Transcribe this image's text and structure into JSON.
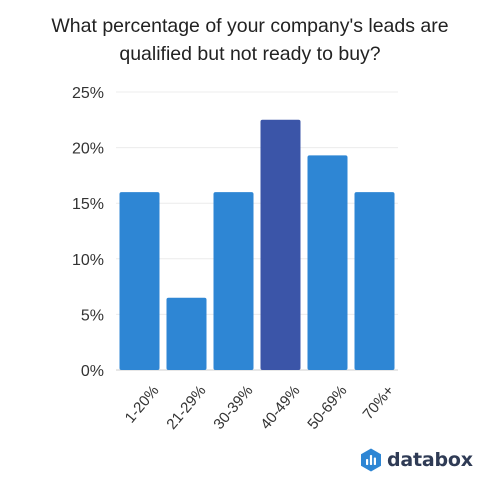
{
  "chart_data": {
    "type": "bar",
    "title": "What percentage of your company's leads are qualified but not ready to buy?",
    "title_lines": [
      "What percentage of your company's leads are",
      "qualified but not ready to buy?"
    ],
    "categories": [
      "1-20%",
      "21-29%",
      "30-39%",
      "40-49%",
      "50-69%",
      "70%+"
    ],
    "values": [
      16,
      6.5,
      16,
      22.5,
      19.3,
      16
    ],
    "ylim": [
      0,
      25
    ],
    "yticks": [
      0,
      5,
      10,
      15,
      20,
      25
    ],
    "ytick_labels": [
      "0%",
      "5%",
      "10%",
      "15%",
      "20%",
      "25%"
    ],
    "xlabel": "",
    "ylabel": "",
    "grid": true,
    "bar_color": "#2e86d4",
    "highlight_index": 3,
    "highlight_color": "#3b55a8"
  },
  "brand": {
    "name": "databox",
    "icon": "databox-logo-icon",
    "color": "#2f3b55"
  }
}
